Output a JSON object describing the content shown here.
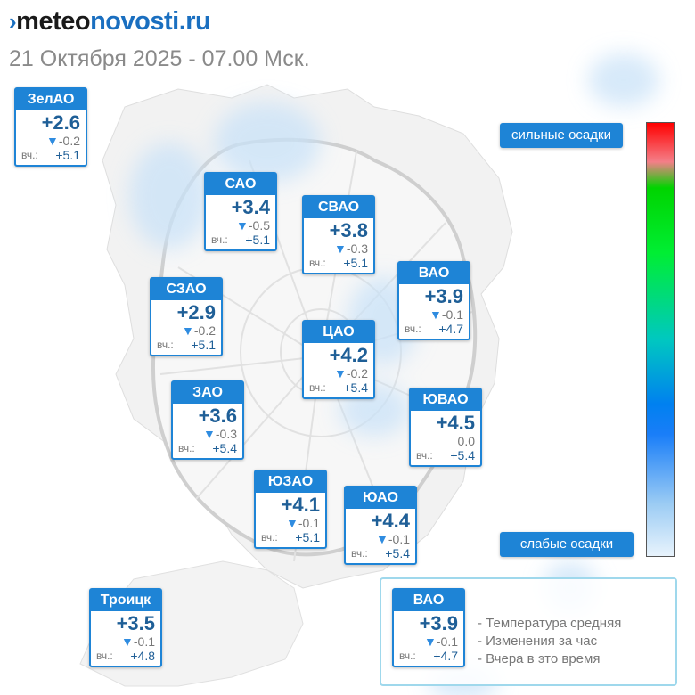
{
  "logo": {
    "arrow": "›",
    "part1": "meteo",
    "part2": "novosti.ru"
  },
  "datetime": "21 Октября 2025 - 07.00 Мск.",
  "districts": [
    {
      "name": "ЗелАО",
      "temp": "+2.6",
      "change": "-0.2",
      "yesterday_label": "вч.:",
      "yesterday": "+5.1"
    },
    {
      "name": "САО",
      "temp": "+3.4",
      "change": "-0.5",
      "yesterday_label": "вч.:",
      "yesterday": "+5.1"
    },
    {
      "name": "СВАО",
      "temp": "+3.8",
      "change": "-0.3",
      "yesterday_label": "вч.:",
      "yesterday": "+5.1"
    },
    {
      "name": "ВАО",
      "temp": "+3.9",
      "change": "-0.1",
      "yesterday_label": "вч.:",
      "yesterday": "+4.7"
    },
    {
      "name": "СЗАО",
      "temp": "+2.9",
      "change": "-0.2",
      "yesterday_label": "вч.:",
      "yesterday": "+5.1"
    },
    {
      "name": "ЦАО",
      "temp": "+4.2",
      "change": "-0.2",
      "yesterday_label": "вч.:",
      "yesterday": "+5.4"
    },
    {
      "name": "ЗАО",
      "temp": "+3.6",
      "change": "-0.3",
      "yesterday_label": "вч.:",
      "yesterday": "+5.4"
    },
    {
      "name": "ЮВАО",
      "temp": "+4.5",
      "change": "0.0",
      "yesterday_label": "вч.:",
      "yesterday": "+5.4"
    },
    {
      "name": "ЮЗАО",
      "temp": "+4.1",
      "change": "-0.1",
      "yesterday_label": "вч.:",
      "yesterday": "+5.1"
    },
    {
      "name": "ЮАО",
      "temp": "+4.4",
      "change": "-0.1",
      "yesterday_label": "вч.:",
      "yesterday": "+5.4"
    },
    {
      "name": "Троицк",
      "temp": "+3.5",
      "change": "-0.1",
      "yesterday_label": "вч.:",
      "yesterday": "+4.8"
    }
  ],
  "legend": {
    "strong": "сильные осадки",
    "weak": "слабые осадки",
    "example": {
      "name": "ВАО",
      "temp": "+3.9",
      "change": "-0.1",
      "yesterday_label": "вч.:",
      "yesterday": "+4.7"
    },
    "lines": [
      "- Температура средняя",
      "- Изменения за час",
      "- Вчера в это время"
    ]
  },
  "icons": {
    "down": "▼"
  },
  "colors": {
    "accent": "#1e84d6",
    "temp": "#1f5f97",
    "precip_light": "#c9e2f8"
  }
}
